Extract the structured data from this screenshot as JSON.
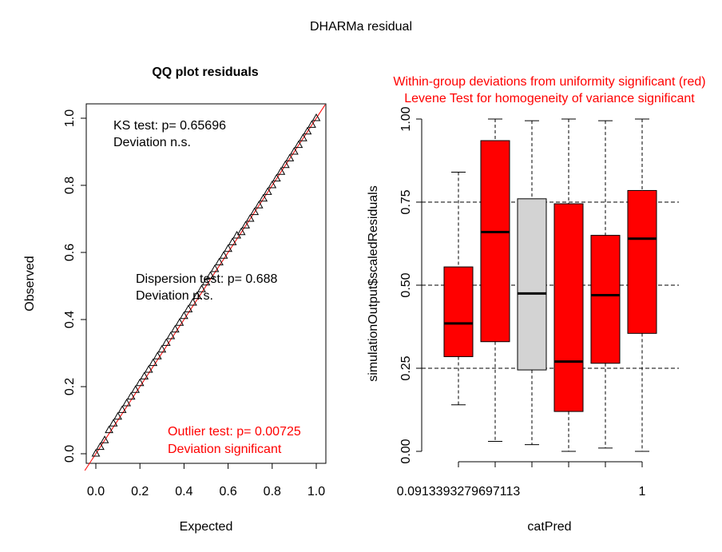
{
  "figure_title": "DHARMa residual",
  "chart_data": [
    {
      "type": "scatter",
      "title": "QQ plot residuals",
      "xlabel": "Expected",
      "ylabel": "Observed",
      "xlim": [
        0,
        1
      ],
      "ylim": [
        0,
        1
      ],
      "x_ticks": [
        "0.0",
        "0.2",
        "0.4",
        "0.6",
        "0.8",
        "1.0"
      ],
      "y_ticks": [
        "0.0",
        "0.2",
        "0.4",
        "0.6",
        "0.8",
        "1.0"
      ],
      "reference_line": {
        "slope": 1,
        "intercept": 0,
        "color": "#ff0000"
      },
      "series": [
        {
          "x": [
            0.0,
            0.02,
            0.04,
            0.06,
            0.08,
            0.1,
            0.12,
            0.14,
            0.16,
            0.18,
            0.2,
            0.22,
            0.24,
            0.26,
            0.28,
            0.3,
            0.32,
            0.34,
            0.36,
            0.38,
            0.4,
            0.42,
            0.44,
            0.46,
            0.48,
            0.5,
            0.52,
            0.54,
            0.56,
            0.58,
            0.6,
            0.62,
            0.64,
            0.66,
            0.68,
            0.7,
            0.72,
            0.74,
            0.76,
            0.78,
            0.8,
            0.82,
            0.84,
            0.86,
            0.88,
            0.9,
            0.92,
            0.94,
            0.96,
            0.98,
            1.0
          ],
          "y": [
            0.0,
            0.02,
            0.04,
            0.07,
            0.09,
            0.11,
            0.13,
            0.15,
            0.17,
            0.19,
            0.21,
            0.23,
            0.25,
            0.27,
            0.29,
            0.31,
            0.33,
            0.35,
            0.37,
            0.39,
            0.41,
            0.43,
            0.45,
            0.47,
            0.49,
            0.51,
            0.53,
            0.55,
            0.57,
            0.59,
            0.61,
            0.63,
            0.65,
            0.66,
            0.68,
            0.7,
            0.72,
            0.74,
            0.76,
            0.78,
            0.8,
            0.82,
            0.84,
            0.86,
            0.88,
            0.9,
            0.92,
            0.94,
            0.96,
            0.98,
            1.0
          ]
        }
      ],
      "annotations": {
        "ks_test": "KS test: p= 0.65696",
        "ks_deviation": "Deviation  n.s.",
        "dispersion_test": "Dispersion test: p= 0.688",
        "dispersion_deviation": "Deviation  n.s.",
        "outlier_test": "Outlier test: p= 0.00725",
        "outlier_deviation": "Deviation  significant"
      },
      "colors": {
        "points": "#000000",
        "outlier_text": "#ff0000"
      }
    },
    {
      "type": "box",
      "title_line1": "Within-group deviations from uniformity significant (red)",
      "title_line2": "Levene Test for homogeneity of variance significant",
      "title_color": "#ff0000",
      "xlabel": "catPred",
      "ylabel": "simulationOutput$scaledResiduals",
      "ylim": [
        0,
        1
      ],
      "y_ticks": [
        "0.00",
        "0.25",
        "0.50",
        "0.75",
        "1.00"
      ],
      "x_tick_labels": [
        "0.0913393279697113",
        "1"
      ],
      "reference_lines": [
        0.25,
        0.5,
        0.75
      ],
      "boxes": [
        {
          "min": 0.14,
          "q1": 0.285,
          "median": 0.385,
          "q3": 0.555,
          "max": 0.84,
          "color": "#ff0000"
        },
        {
          "min": 0.03,
          "q1": 0.33,
          "median": 0.66,
          "q3": 0.935,
          "max": 1.0,
          "color": "#ff0000"
        },
        {
          "min": 0.02,
          "q1": 0.245,
          "median": 0.475,
          "q3": 0.76,
          "max": 0.995,
          "color": "#d3d3d3"
        },
        {
          "min": 0.0,
          "q1": 0.12,
          "median": 0.27,
          "q3": 0.745,
          "max": 1.0,
          "color": "#ff0000"
        },
        {
          "min": 0.01,
          "q1": 0.265,
          "median": 0.47,
          "q3": 0.65,
          "max": 0.995,
          "color": "#ff0000"
        },
        {
          "min": 0.0,
          "q1": 0.355,
          "median": 0.64,
          "q3": 0.785,
          "max": 1.0,
          "color": "#ff0000"
        }
      ]
    }
  ]
}
